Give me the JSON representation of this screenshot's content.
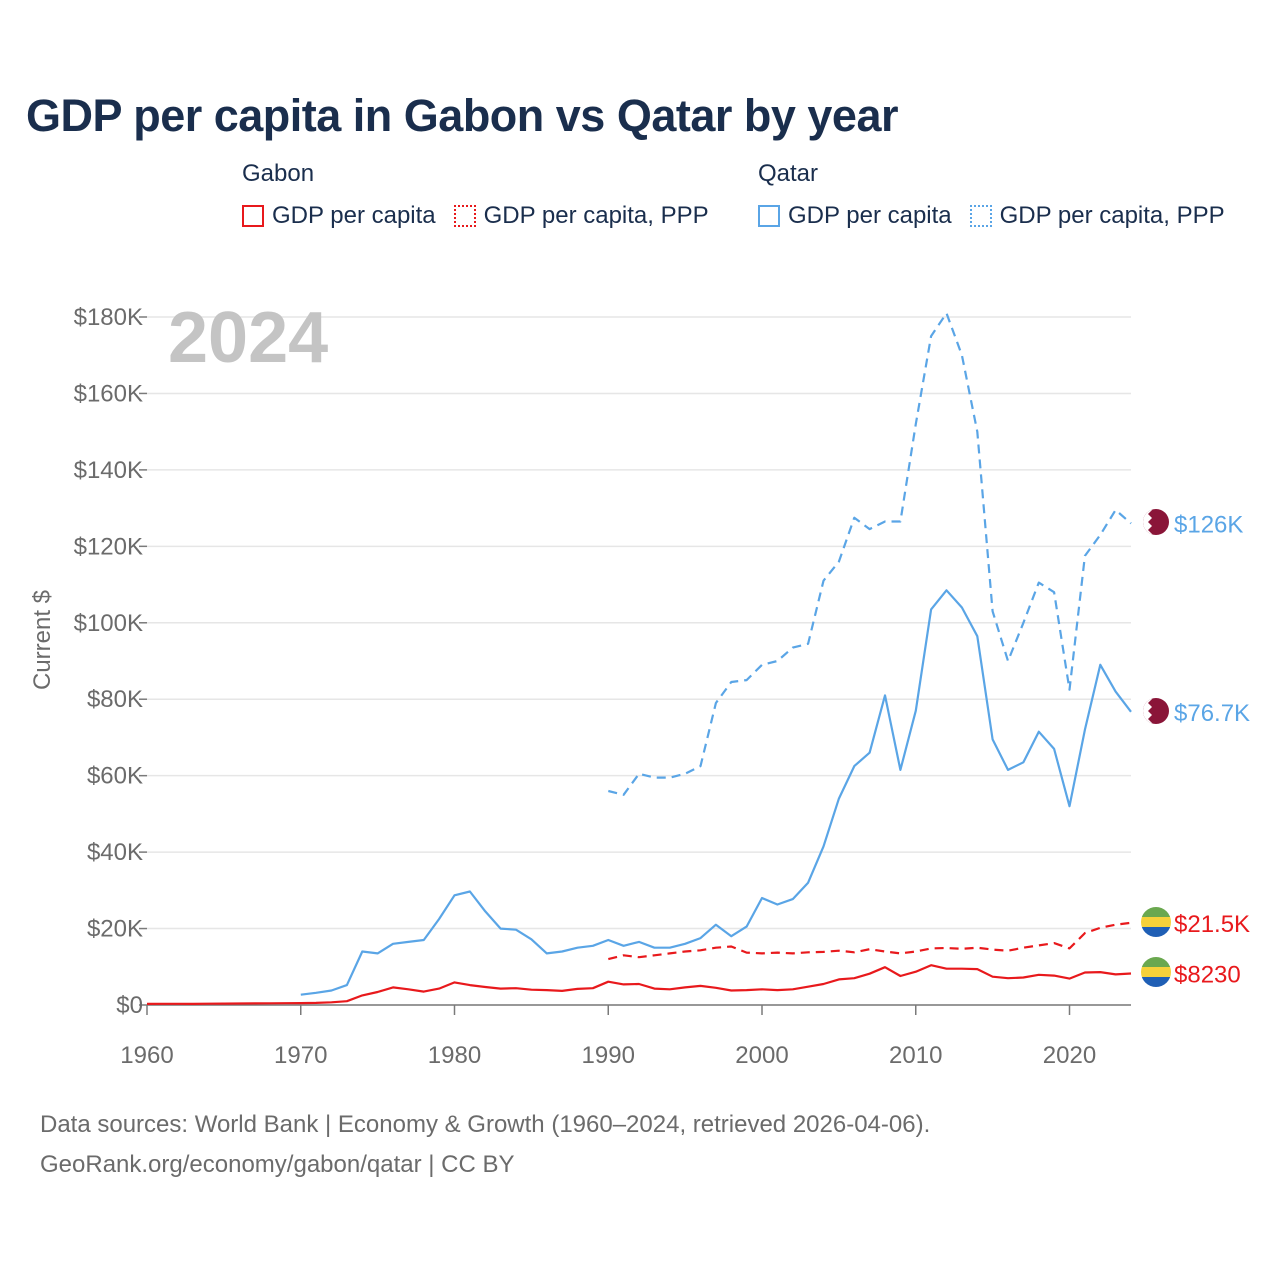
{
  "title": "GDP per capita in Gabon vs Qatar by year",
  "legend": {
    "groups": [
      {
        "name": "Gabon",
        "color": "#e8191c",
        "items": [
          {
            "label": "GDP per capita",
            "style": "solid"
          },
          {
            "label": "GDP per capita, PPP",
            "style": "dotted"
          }
        ]
      },
      {
        "name": "Qatar",
        "color": "#5aa5e6",
        "items": [
          {
            "label": "GDP per capita",
            "style": "solid"
          },
          {
            "label": "GDP per capita, PPP",
            "style": "dotted"
          }
        ]
      }
    ]
  },
  "year_badge": "2024",
  "footer": {
    "line1": "Data sources: World Bank | Economy & Growth (1960–2024, retrieved 2026-04-06).",
    "line2": "GeoRank.org/economy/gabon/qatar | CC BY"
  },
  "chart_data": {
    "type": "line",
    "ylabel": "Current $",
    "xlabel": "",
    "xlim": [
      1960,
      2024
    ],
    "ylim": [
      0,
      180000
    ],
    "x_ticks": [
      1960,
      1970,
      1980,
      1990,
      2000,
      2010,
      2020
    ],
    "y_ticks": [
      {
        "value": 0,
        "label": "$0"
      },
      {
        "value": 20000,
        "label": "$20K"
      },
      {
        "value": 40000,
        "label": "$40K"
      },
      {
        "value": 60000,
        "label": "$60K"
      },
      {
        "value": 80000,
        "label": "$80K"
      },
      {
        "value": 100000,
        "label": "$100K"
      },
      {
        "value": 120000,
        "label": "$120K"
      },
      {
        "value": 140000,
        "label": "$140K"
      },
      {
        "value": 160000,
        "label": "$160K"
      },
      {
        "value": 180000,
        "label": "$180K"
      }
    ],
    "grid": true,
    "series": [
      {
        "name": "Qatar GDP per capita, PPP",
        "country": "Qatar",
        "color": "#5aa5e6",
        "dashed": true,
        "end_label": "$126K",
        "flag": "qatar",
        "points": [
          [
            1990,
            56000
          ],
          [
            1991,
            55000
          ],
          [
            1992,
            60500
          ],
          [
            1993,
            59500
          ],
          [
            1994,
            59500
          ],
          [
            1995,
            60500
          ],
          [
            1996,
            62500
          ],
          [
            1997,
            79000
          ],
          [
            1998,
            84500
          ],
          [
            1999,
            85000
          ],
          [
            2000,
            89000
          ],
          [
            2001,
            90000
          ],
          [
            2002,
            93500
          ],
          [
            2003,
            94500
          ],
          [
            2004,
            111000
          ],
          [
            2005,
            116000
          ],
          [
            2006,
            127500
          ],
          [
            2007,
            124500
          ],
          [
            2008,
            126500
          ],
          [
            2009,
            126500
          ],
          [
            2010,
            152000
          ],
          [
            2011,
            175000
          ],
          [
            2012,
            181000
          ],
          [
            2013,
            170000
          ],
          [
            2014,
            150000
          ],
          [
            2015,
            103000
          ],
          [
            2016,
            90000
          ],
          [
            2017,
            100000
          ],
          [
            2018,
            110500
          ],
          [
            2019,
            108000
          ],
          [
            2020,
            82500
          ],
          [
            2021,
            117500
          ],
          [
            2022,
            123000
          ],
          [
            2023,
            129500
          ],
          [
            2024,
            126000
          ]
        ]
      },
      {
        "name": "Qatar GDP per capita",
        "country": "Qatar",
        "color": "#5aa5e6",
        "dashed": false,
        "end_label": "$76.7K",
        "flag": "qatar",
        "points": [
          [
            1970,
            2700
          ],
          [
            1971,
            3200
          ],
          [
            1972,
            3800
          ],
          [
            1973,
            5200
          ],
          [
            1974,
            14000
          ],
          [
            1975,
            13500
          ],
          [
            1976,
            16000
          ],
          [
            1977,
            16500
          ],
          [
            1978,
            17000
          ],
          [
            1979,
            22500
          ],
          [
            1980,
            28700
          ],
          [
            1981,
            29700
          ],
          [
            1982,
            24500
          ],
          [
            1983,
            20000
          ],
          [
            1984,
            19700
          ],
          [
            1985,
            17200
          ],
          [
            1986,
            13500
          ],
          [
            1987,
            14000
          ],
          [
            1988,
            15000
          ],
          [
            1989,
            15500
          ],
          [
            1990,
            17000
          ],
          [
            1991,
            15500
          ],
          [
            1992,
            16500
          ],
          [
            1993,
            15000
          ],
          [
            1994,
            15000
          ],
          [
            1995,
            16000
          ],
          [
            1996,
            17500
          ],
          [
            1997,
            21000
          ],
          [
            1998,
            18000
          ],
          [
            1999,
            20500
          ],
          [
            2000,
            28000
          ],
          [
            2001,
            26300
          ],
          [
            2002,
            27700
          ],
          [
            2003,
            32000
          ],
          [
            2004,
            41500
          ],
          [
            2005,
            54000
          ],
          [
            2006,
            62500
          ],
          [
            2007,
            66000
          ],
          [
            2008,
            81000
          ],
          [
            2009,
            61500
          ],
          [
            2010,
            77000
          ],
          [
            2011,
            103500
          ],
          [
            2012,
            108500
          ],
          [
            2013,
            104000
          ],
          [
            2014,
            96500
          ],
          [
            2015,
            69500
          ],
          [
            2016,
            61500
          ],
          [
            2017,
            63500
          ],
          [
            2018,
            71500
          ],
          [
            2019,
            67000
          ],
          [
            2020,
            52000
          ],
          [
            2021,
            72000
          ],
          [
            2022,
            89000
          ],
          [
            2023,
            82000
          ],
          [
            2024,
            76700
          ]
        ]
      },
      {
        "name": "Gabon GDP per capita, PPP",
        "country": "Gabon",
        "color": "#e8191c",
        "dashed": true,
        "end_label": "$21.5K",
        "flag": "gabon",
        "points": [
          [
            1990,
            12000
          ],
          [
            1991,
            13000
          ],
          [
            1992,
            12500
          ],
          [
            1993,
            13000
          ],
          [
            1994,
            13500
          ],
          [
            1995,
            14000
          ],
          [
            1996,
            14300
          ],
          [
            1997,
            15000
          ],
          [
            1998,
            15300
          ],
          [
            1999,
            13700
          ],
          [
            2000,
            13500
          ],
          [
            2001,
            13700
          ],
          [
            2002,
            13500
          ],
          [
            2003,
            13800
          ],
          [
            2004,
            13900
          ],
          [
            2005,
            14200
          ],
          [
            2006,
            13800
          ],
          [
            2007,
            14600
          ],
          [
            2008,
            14000
          ],
          [
            2009,
            13500
          ],
          [
            2010,
            14000
          ],
          [
            2011,
            14800
          ],
          [
            2012,
            14900
          ],
          [
            2013,
            14700
          ],
          [
            2014,
            15000
          ],
          [
            2015,
            14500
          ],
          [
            2016,
            14200
          ],
          [
            2017,
            15000
          ],
          [
            2018,
            15600
          ],
          [
            2019,
            16200
          ],
          [
            2020,
            14800
          ],
          [
            2021,
            18800
          ],
          [
            2022,
            20200
          ],
          [
            2023,
            21000
          ],
          [
            2024,
            21500
          ]
        ]
      },
      {
        "name": "Gabon GDP per capita",
        "country": "Gabon",
        "color": "#e8191c",
        "dashed": false,
        "end_label": "$8230",
        "flag": "gabon",
        "points": [
          [
            1960,
            280
          ],
          [
            1961,
            310
          ],
          [
            1962,
            320
          ],
          [
            1963,
            300
          ],
          [
            1964,
            330
          ],
          [
            1965,
            370
          ],
          [
            1966,
            390
          ],
          [
            1967,
            420
          ],
          [
            1968,
            440
          ],
          [
            1969,
            470
          ],
          [
            1970,
            500
          ],
          [
            1971,
            560
          ],
          [
            1972,
            700
          ],
          [
            1973,
            1000
          ],
          [
            1974,
            2500
          ],
          [
            1975,
            3400
          ],
          [
            1976,
            4600
          ],
          [
            1977,
            4100
          ],
          [
            1978,
            3500
          ],
          [
            1979,
            4300
          ],
          [
            1980,
            5900
          ],
          [
            1981,
            5200
          ],
          [
            1982,
            4700
          ],
          [
            1983,
            4300
          ],
          [
            1984,
            4400
          ],
          [
            1985,
            4000
          ],
          [
            1986,
            3900
          ],
          [
            1987,
            3700
          ],
          [
            1988,
            4200
          ],
          [
            1989,
            4400
          ],
          [
            1990,
            6100
          ],
          [
            1991,
            5400
          ],
          [
            1992,
            5500
          ],
          [
            1993,
            4300
          ],
          [
            1994,
            4100
          ],
          [
            1995,
            4600
          ],
          [
            1996,
            5000
          ],
          [
            1997,
            4500
          ],
          [
            1998,
            3800
          ],
          [
            1999,
            3900
          ],
          [
            2000,
            4100
          ],
          [
            2001,
            3900
          ],
          [
            2002,
            4100
          ],
          [
            2003,
            4800
          ],
          [
            2004,
            5500
          ],
          [
            2005,
            6700
          ],
          [
            2006,
            7000
          ],
          [
            2007,
            8200
          ],
          [
            2008,
            9900
          ],
          [
            2009,
            7600
          ],
          [
            2010,
            8700
          ],
          [
            2011,
            10400
          ],
          [
            2012,
            9500
          ],
          [
            2013,
            9500
          ],
          [
            2014,
            9400
          ],
          [
            2015,
            7400
          ],
          [
            2016,
            7000
          ],
          [
            2017,
            7200
          ],
          [
            2018,
            7900
          ],
          [
            2019,
            7700
          ],
          [
            2020,
            6900
          ],
          [
            2021,
            8500
          ],
          [
            2022,
            8600
          ],
          [
            2023,
            8000
          ],
          [
            2024,
            8230
          ]
        ]
      }
    ]
  }
}
